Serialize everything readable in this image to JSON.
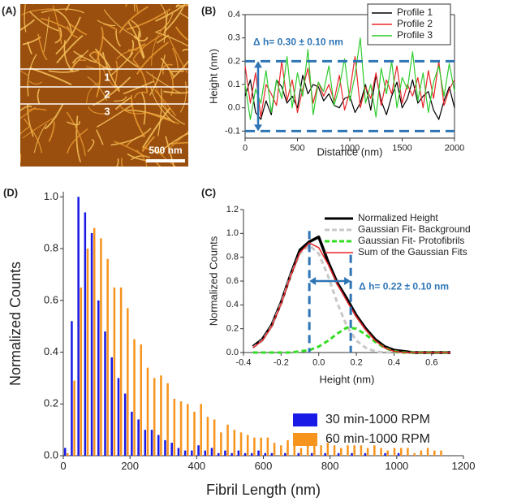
{
  "image_panel": {
    "label": "(A)",
    "line_labels": [
      "1",
      "2",
      "3"
    ],
    "scale_bar": "500 nm"
  },
  "chart_data": [
    {
      "type": "line",
      "panel_label": "(B)",
      "y_label": "Height (nm)",
      "x_label": "Distance (nm)",
      "x": [
        0,
        50,
        100,
        150,
        200,
        250,
        300,
        350,
        400,
        450,
        500,
        550,
        600,
        650,
        700,
        750,
        800,
        850,
        900,
        950,
        1000,
        1050,
        1100,
        1150,
        1200,
        1250,
        1300,
        1350,
        1400,
        1450,
        1500,
        1550,
        1600,
        1650,
        1700,
        1750,
        1800,
        1850,
        1900,
        1950,
        2000
      ],
      "series": [
        {
          "name": "Profile 1",
          "color": "#000000",
          "values": [
            0.05,
            0.12,
            -0.02,
            -0.05,
            0.03,
            -0.03,
            0.12,
            0.09,
            0.02,
            0.05,
            0.0,
            0.14,
            0.06,
            0.1,
            0.09,
            0.03,
            0.06,
            0.01,
            0.0,
            0.04,
            0.05,
            -0.02,
            0.02,
            0.1,
            -0.01,
            0.14,
            0.03,
            -0.03,
            0.05,
            0.11,
            0.0,
            0.04,
            0.12,
            0.02,
            0.05,
            0.07,
            -0.01,
            -0.05,
            0.03,
            0.09,
            0.0
          ]
        },
        {
          "name": "Profile 2",
          "color": "#e8262a",
          "values": [
            0.18,
            0.02,
            0.15,
            -0.04,
            0.1,
            0.06,
            0.01,
            0.2,
            0.03,
            0.12,
            -0.02,
            0.08,
            0.17,
            0.02,
            0.11,
            0.05,
            0.1,
            0.03,
            0.14,
            -0.01,
            0.07,
            0.22,
            0.0,
            0.09,
            0.04,
            0.15,
            0.01,
            0.12,
            0.06,
            0.18,
            0.02,
            0.1,
            0.05,
            0.13,
            0.0,
            0.16,
            0.04,
            0.2,
            0.01,
            0.08,
            0.12
          ]
        },
        {
          "name": "Profile 3",
          "color": "#2ecc2e",
          "values": [
            0.1,
            -0.05,
            0.08,
            0.02,
            0.16,
            -0.02,
            0.12,
            0.04,
            0.22,
            0.0,
            0.15,
            0.05,
            0.25,
            -0.03,
            0.11,
            0.07,
            0.18,
            0.01,
            0.09,
            0.21,
            0.03,
            0.14,
            0.3,
            0.02,
            0.1,
            -0.04,
            0.17,
            0.06,
            0.2,
            0.0,
            0.13,
            0.08,
            0.24,
            0.03,
            0.15,
            -0.02,
            0.11,
            0.18,
            0.05,
            0.19,
            0.07
          ]
        }
      ],
      "xlim": [
        0,
        2000
      ],
      "xticks": [
        0,
        500,
        1000,
        1500,
        2000
      ],
      "ylim": [
        -0.13,
        0.4
      ],
      "yticks": [
        -0.1,
        {
          "value": 0,
          "label": "0.0"
        },
        0.1,
        0.2,
        0.3,
        0.4
      ],
      "hlines": [
        0.2,
        -0.1
      ],
      "annotation": "Δ h= 0.30 ± 0.10 nm",
      "legend": "upper right",
      "frame": true
    },
    {
      "type": "line",
      "panel_label": "(C)",
      "y_label": "Normalized Counts",
      "x_label": "Height (nm)",
      "x": [
        -0.35,
        -0.3,
        -0.25,
        -0.2,
        -0.15,
        -0.1,
        -0.05,
        0,
        0.05,
        0.1,
        0.15,
        0.2,
        0.25,
        0.3,
        0.35,
        0.4,
        0.45,
        0.5,
        0.55,
        0.6,
        0.65,
        0.7
      ],
      "series": [
        {
          "name": "Normalized Height",
          "color": "#000000",
          "width": 3.5,
          "values": [
            0.05,
            0.11,
            0.23,
            0.42,
            0.65,
            0.86,
            0.93,
            0.97,
            0.76,
            0.58,
            0.45,
            0.31,
            0.2,
            0.11,
            0.05,
            0.02,
            0.01,
            0,
            0,
            0,
            0,
            0
          ]
        },
        {
          "name": "Gaussian Fit- Background",
          "color": "#c8c8c8",
          "width": 3,
          "dash": true,
          "values": [
            0.04,
            0.1,
            0.22,
            0.41,
            0.64,
            0.83,
            0.9,
            0.83,
            0.64,
            0.41,
            0.22,
            0.1,
            0.04,
            0.01,
            0,
            0,
            0,
            0,
            0,
            0,
            0,
            0
          ]
        },
        {
          "name": "Gaussian Fit- Protofibrils",
          "color": "#33dd22",
          "width": 3,
          "dash": true,
          "values": [
            0,
            0,
            0,
            0,
            0,
            0.01,
            0.02,
            0.05,
            0.1,
            0.16,
            0.21,
            0.2,
            0.15,
            0.09,
            0.04,
            0.01,
            0,
            0,
            0,
            0,
            0,
            0
          ]
        },
        {
          "name": "Sum of the Gaussian Fits",
          "color": "#e8262a",
          "width": 1.5,
          "values": [
            0.04,
            0.1,
            0.22,
            0.41,
            0.64,
            0.84,
            0.92,
            0.88,
            0.74,
            0.57,
            0.43,
            0.3,
            0.19,
            0.1,
            0.04,
            0.01,
            0,
            0,
            0,
            0,
            0,
            0
          ]
        }
      ],
      "xlim": [
        -0.4,
        0.7
      ],
      "xticks": [
        -0.4,
        -0.2,
        {
          "value": 0,
          "label": "0.0"
        },
        0.2,
        0.4,
        0.6
      ],
      "ylim": [
        0,
        1.2
      ],
      "yticks": [
        {
          "value": 0,
          "label": "0.0"
        },
        0.2,
        0.4,
        0.6,
        0.8,
        {
          "value": 1,
          "label": "1.0"
        },
        1.2
      ],
      "vlines": [
        -0.05,
        0.17
      ],
      "annotation": "Δ h= 0.22 ± 0.10 nm",
      "legend": "upper right",
      "frame": false
    },
    {
      "type": "bar",
      "panel_label": "(D)",
      "y_label": "Normalized Counts",
      "x_label": "Fibril Length (nm)",
      "x": [
        0,
        20,
        40,
        60,
        80,
        100,
        120,
        140,
        160,
        180,
        200,
        220,
        240,
        260,
        280,
        300,
        320,
        340,
        360,
        380,
        400,
        420,
        440,
        460,
        480,
        500,
        520,
        540,
        560,
        580,
        600,
        620,
        640,
        660,
        680,
        700,
        720,
        740,
        760,
        780,
        800,
        820,
        840,
        860,
        880,
        900,
        920,
        940,
        960,
        980,
        1000,
        1020,
        1040,
        1060,
        1080,
        1100,
        1120
      ],
      "series": [
        {
          "name": "30 min-1000 RPM",
          "color": "#1a1ae6",
          "values": [
            0.03,
            0.52,
            1.0,
            0.94,
            0.86,
            0.6,
            0.48,
            0.38,
            0.3,
            0.24,
            0.17,
            0.14,
            0.1,
            0.1,
            0.08,
            0.06,
            0.05,
            0.03,
            0.02,
            0.02,
            0.04,
            0.02,
            0.03,
            0.01,
            0.02,
            0.01,
            0.02,
            0.01,
            0.01,
            0.02,
            0.01,
            0.01,
            0,
            0.01,
            0,
            0.01,
            0,
            0.01,
            0,
            0.01,
            0,
            0.01,
            0,
            0.01,
            0,
            0.01,
            0,
            0,
            0.01,
            0,
            0.01,
            0,
            0,
            0,
            0,
            0,
            0
          ]
        },
        {
          "name": "60 min-1000 RPM",
          "color": "#f7941d",
          "values": [
            0.01,
            0.29,
            0.65,
            0.8,
            0.88,
            0.84,
            0.76,
            0.65,
            0.65,
            0.57,
            0.45,
            0.43,
            0.34,
            0.3,
            0.31,
            0.28,
            0.22,
            0.21,
            0.2,
            0.17,
            0.2,
            0.15,
            0.14,
            0.09,
            0.12,
            0.1,
            0.09,
            0.08,
            0.07,
            0.07,
            0.07,
            0.05,
            0.04,
            0.06,
            0.04,
            0.03,
            0.05,
            0.06,
            0.04,
            0.05,
            0.04,
            0.03,
            0.04,
            0.04,
            0.04,
            0.03,
            0.04,
            0.03,
            0.02,
            0.03,
            0.03,
            0.03,
            0.01,
            0.02,
            0.03,
            0.02,
            0.02
          ]
        }
      ],
      "xlim": [
        0,
        1200
      ],
      "xticks": [
        0,
        200,
        400,
        600,
        800,
        1000,
        1200
      ],
      "ylim": [
        0,
        1.02
      ],
      "yticks": [
        {
          "value": 0,
          "label": "0.0"
        },
        0.2,
        0.4,
        0.6,
        0.8,
        {
          "value": 1,
          "label": "1.0"
        }
      ],
      "legend": "lower right",
      "frame": false
    }
  ]
}
